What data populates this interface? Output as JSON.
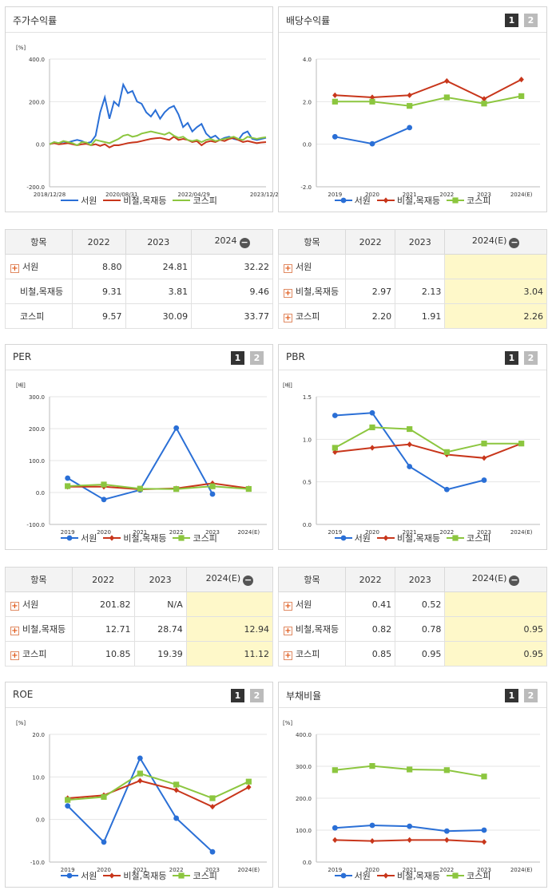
{
  "colors": {
    "seowon": "#2a6fd6",
    "steel": "#c8361b",
    "kospi": "#8cc63f"
  },
  "legend": [
    "서원",
    "비철,목재등",
    "코스피"
  ],
  "charts": {
    "stock": {
      "title": "주가수익률",
      "unit": "[%]",
      "type": "line",
      "yticks": [
        "400.0",
        "200.0",
        "0.0",
        "-200.0"
      ],
      "ylim": [
        -200,
        400
      ],
      "xticks": [
        "2018/12/28",
        "2020/08/31",
        "2022/04/29",
        "2023/12/28"
      ],
      "series": [
        {
          "name": "서원",
          "values": [
            0,
            10,
            5,
            12,
            8,
            15,
            20,
            15,
            5,
            10,
            40,
            150,
            220,
            120,
            200,
            180,
            280,
            240,
            250,
            200,
            190,
            150,
            130,
            160,
            120,
            150,
            170,
            180,
            140,
            80,
            100,
            60,
            80,
            95,
            50,
            30,
            40,
            20,
            30,
            35,
            25,
            20,
            50,
            60,
            25,
            20,
            25,
            30
          ]
        },
        {
          "name": "비철,목재등",
          "values": [
            0,
            5,
            0,
            2,
            5,
            0,
            -5,
            0,
            2,
            -5,
            0,
            -8,
            0,
            -15,
            -5,
            -5,
            0,
            5,
            8,
            10,
            15,
            20,
            25,
            28,
            30,
            25,
            20,
            35,
            20,
            25,
            20,
            10,
            15,
            -5,
            10,
            15,
            10,
            20,
            15,
            25,
            30,
            20,
            10,
            15,
            10,
            5,
            8,
            10
          ]
        },
        {
          "name": "코스피",
          "values": [
            0,
            10,
            5,
            15,
            10,
            5,
            -5,
            10,
            8,
            -5,
            20,
            15,
            10,
            5,
            15,
            25,
            40,
            45,
            35,
            40,
            50,
            55,
            60,
            55,
            50,
            45,
            55,
            40,
            30,
            35,
            20,
            15,
            20,
            10,
            20,
            25,
            15,
            20,
            25,
            30,
            35,
            25,
            20,
            35,
            30,
            25,
            30,
            33
          ]
        }
      ]
    },
    "dividend": {
      "title": "배당수익률",
      "unit": "",
      "type": "line",
      "yticks": [
        "4.0",
        "2.0",
        "0.0",
        "-2.0"
      ],
      "ylim": [
        -2,
        4
      ],
      "xticks": [
        "2019",
        "2020",
        "2021",
        "2022",
        "2023",
        "2024(E)"
      ],
      "series": [
        {
          "name": "서원",
          "values": [
            0.35,
            0.02,
            0.78,
            null,
            null,
            null
          ]
        },
        {
          "name": "비철,목재등",
          "values": [
            2.3,
            2.2,
            2.3,
            2.97,
            2.13,
            3.04
          ]
        },
        {
          "name": "코스피",
          "values": [
            2.0,
            2.0,
            1.8,
            2.2,
            1.91,
            2.26
          ]
        }
      ]
    },
    "per": {
      "title": "PER",
      "unit": "[배]",
      "type": "line",
      "yticks": [
        "300.0",
        "200.0",
        "100.0",
        "0.0",
        "-100.0"
      ],
      "ylim": [
        -100,
        300
      ],
      "xticks": [
        "2019",
        "2020",
        "2021",
        "2022",
        "2023",
        "2024(E)"
      ],
      "series": [
        {
          "name": "서원",
          "values": [
            45,
            -22,
            8,
            201.82,
            -5,
            null
          ]
        },
        {
          "name": "비철,목재등",
          "values": [
            18,
            18,
            10,
            12.71,
            28.74,
            12.94
          ]
        },
        {
          "name": "코스피",
          "values": [
            20,
            25,
            12,
            10.85,
            19.39,
            11.12
          ]
        }
      ]
    },
    "pbr": {
      "title": "PBR",
      "unit": "[배]",
      "type": "line",
      "yticks": [
        "1.5",
        "1.0",
        "0.5",
        "0.0"
      ],
      "ylim": [
        0,
        1.5
      ],
      "xticks": [
        "2019",
        "2020",
        "2021",
        "2022",
        "2023",
        "2024(E)"
      ],
      "series": [
        {
          "name": "서원",
          "values": [
            1.28,
            1.31,
            0.68,
            0.41,
            0.52,
            null
          ]
        },
        {
          "name": "비철,목재등",
          "values": [
            0.85,
            0.9,
            0.94,
            0.82,
            0.78,
            0.95
          ]
        },
        {
          "name": "코스피",
          "values": [
            0.9,
            1.14,
            1.12,
            0.85,
            0.95,
            0.95
          ]
        }
      ]
    },
    "roe": {
      "title": "ROE",
      "unit": "[%]",
      "type": "line",
      "yticks": [
        "20.0",
        "10.0",
        "0.0",
        "-10.0"
      ],
      "ylim": [
        -10,
        20
      ],
      "xticks": [
        "2019",
        "2020",
        "2021",
        "2022",
        "2023",
        "2024(E)"
      ],
      "series": [
        {
          "name": "서원",
          "values": [
            3.2,
            -5.3,
            14.4,
            0.3,
            -7.6,
            null
          ]
        },
        {
          "name": "비철,목재등",
          "values": [
            5.0,
            5.7,
            9.1,
            6.9,
            3.0,
            7.6
          ]
        },
        {
          "name": "코스피",
          "values": [
            4.6,
            5.3,
            10.8,
            8.2,
            5.0,
            8.9
          ]
        }
      ]
    },
    "debt": {
      "title": "부채비율",
      "unit": "[%]",
      "type": "line",
      "yticks": [
        "400.0",
        "300.0",
        "200.0",
        "100.0",
        "0.0"
      ],
      "ylim": [
        0,
        400
      ],
      "xticks": [
        "2019",
        "2020",
        "2021",
        "2022",
        "2023",
        "2024(E)"
      ],
      "series": [
        {
          "name": "서원",
          "values": [
            107,
            115,
            112,
            97,
            100,
            null
          ]
        },
        {
          "name": "비철,목재등",
          "values": [
            69,
            66,
            69,
            69,
            63,
            null
          ]
        },
        {
          "name": "코스피",
          "values": [
            288,
            301,
            290,
            288,
            268,
            null
          ]
        }
      ]
    }
  },
  "tables": {
    "stock": {
      "head": [
        "항목",
        "2022",
        "2023",
        "2024"
      ],
      "hl": false,
      "rows": [
        {
          "name": "서원",
          "plus": true,
          "v": [
            "8.80",
            "24.81",
            "32.22"
          ]
        },
        {
          "name": "비철,목재등",
          "plus": false,
          "v": [
            "9.31",
            "3.81",
            "9.46"
          ]
        },
        {
          "name": "코스피",
          "plus": false,
          "v": [
            "9.57",
            "30.09",
            "33.77"
          ]
        }
      ]
    },
    "dividend": {
      "head": [
        "항목",
        "2022",
        "2023",
        "2024(E)"
      ],
      "hl": true,
      "rows": [
        {
          "name": "서원",
          "plus": true,
          "v": [
            "",
            "",
            ""
          ]
        },
        {
          "name": "비철,목재등",
          "plus": true,
          "v": [
            "2.97",
            "2.13",
            "3.04"
          ]
        },
        {
          "name": "코스피",
          "plus": true,
          "v": [
            "2.20",
            "1.91",
            "2.26"
          ]
        }
      ]
    },
    "per": {
      "head": [
        "항목",
        "2022",
        "2023",
        "2024(E)"
      ],
      "hl": true,
      "rows": [
        {
          "name": "서원",
          "plus": true,
          "v": [
            "201.82",
            "N/A",
            ""
          ]
        },
        {
          "name": "비철,목재등",
          "plus": true,
          "v": [
            "12.71",
            "28.74",
            "12.94"
          ]
        },
        {
          "name": "코스피",
          "plus": true,
          "v": [
            "10.85",
            "19.39",
            "11.12"
          ]
        }
      ]
    },
    "pbr": {
      "head": [
        "항목",
        "2022",
        "2023",
        "2024(E)"
      ],
      "hl": true,
      "rows": [
        {
          "name": "서원",
          "plus": true,
          "v": [
            "0.41",
            "0.52",
            ""
          ]
        },
        {
          "name": "비철,목재등",
          "plus": true,
          "v": [
            "0.82",
            "0.78",
            "0.95"
          ]
        },
        {
          "name": "코스피",
          "plus": true,
          "v": [
            "0.85",
            "0.95",
            "0.95"
          ]
        }
      ]
    }
  },
  "pager": [
    "1",
    "2"
  ],
  "minus_icon": "minus-circle-icon",
  "plus_icon": "plus-box-icon"
}
